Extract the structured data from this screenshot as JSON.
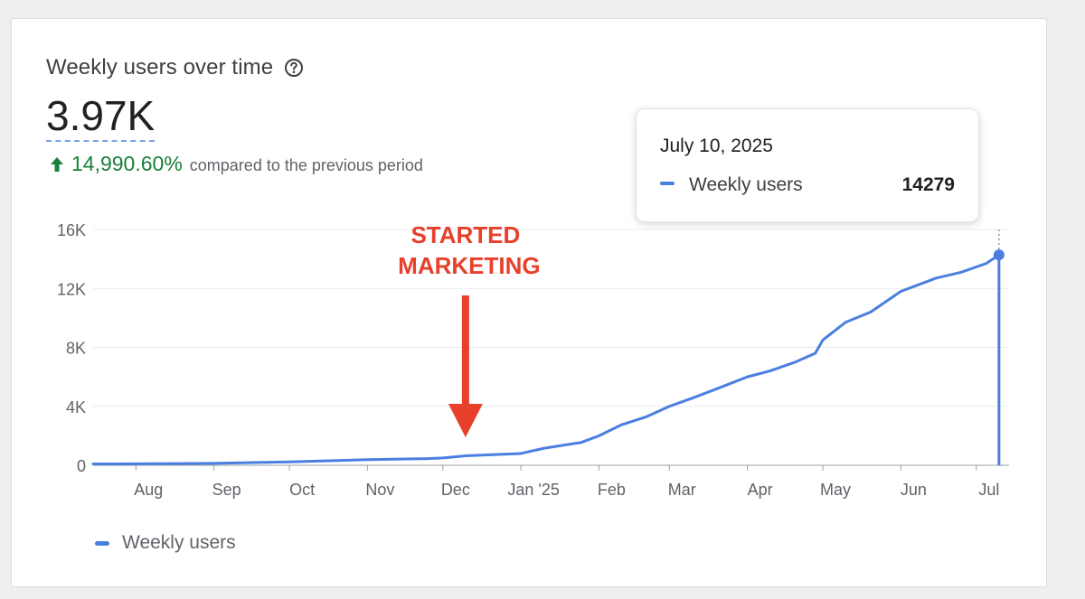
{
  "header": {
    "title": "Weekly users over time",
    "help_icon": "help-circle-icon",
    "metric": "3.97K",
    "change_icon": "arrow-up-icon",
    "change_percent": "14,990.60%",
    "change_note": "compared to the previous period"
  },
  "tooltip": {
    "date": "July 10, 2025",
    "series_label": "Weekly users",
    "value": "14279"
  },
  "annotation": {
    "line1": "STARTED",
    "line2": "MARKETING",
    "date": "2024-12-10"
  },
  "colors": {
    "series": "#4a7fe0",
    "annotation": "#e8402a",
    "positive": "#188038"
  },
  "chart_data": {
    "type": "line",
    "x_type": "date",
    "xlim": [
      "2024-07-15",
      "2025-07-14"
    ],
    "ylim": [
      0,
      16000
    ],
    "yticks": [
      {
        "value": 0,
        "label": "0"
      },
      {
        "value": 4000,
        "label": "4K"
      },
      {
        "value": 8000,
        "label": "8K"
      },
      {
        "value": 12000,
        "label": "12K"
      },
      {
        "value": 16000,
        "label": "16K"
      }
    ],
    "xticks": [
      {
        "date": "2024-08-01",
        "label": "Aug"
      },
      {
        "date": "2024-09-01",
        "label": "Sep"
      },
      {
        "date": "2024-10-01",
        "label": "Oct"
      },
      {
        "date": "2024-11-01",
        "label": "Nov"
      },
      {
        "date": "2024-12-01",
        "label": "Dec"
      },
      {
        "date": "2025-01-01",
        "label": "Jan '25"
      },
      {
        "date": "2025-02-01",
        "label": "Feb"
      },
      {
        "date": "2025-03-01",
        "label": "Mar"
      },
      {
        "date": "2025-04-01",
        "label": "Apr"
      },
      {
        "date": "2025-05-01",
        "label": "May"
      },
      {
        "date": "2025-06-01",
        "label": "Jun"
      },
      {
        "date": "2025-07-01",
        "label": "Jul"
      }
    ],
    "grid": true,
    "legend": "bottom-left",
    "series": [
      {
        "name": "Weekly users",
        "points": [
          [
            "2024-07-15",
            90
          ],
          [
            "2024-08-01",
            100
          ],
          [
            "2024-09-01",
            130
          ],
          [
            "2024-10-01",
            230
          ],
          [
            "2024-11-01",
            380
          ],
          [
            "2024-11-25",
            450
          ],
          [
            "2024-12-01",
            500
          ],
          [
            "2024-12-10",
            640
          ],
          [
            "2025-01-01",
            800
          ],
          [
            "2025-01-10",
            1150
          ],
          [
            "2025-01-25",
            1550
          ],
          [
            "2025-02-01",
            2000
          ],
          [
            "2025-02-10",
            2750
          ],
          [
            "2025-02-20",
            3300
          ],
          [
            "2025-03-01",
            4000
          ],
          [
            "2025-03-10",
            4550
          ],
          [
            "2025-03-20",
            5200
          ],
          [
            "2025-04-01",
            6000
          ],
          [
            "2025-04-10",
            6400
          ],
          [
            "2025-04-20",
            7000
          ],
          [
            "2025-04-28",
            7600
          ],
          [
            "2025-05-01",
            8500
          ],
          [
            "2025-05-10",
            9700
          ],
          [
            "2025-05-20",
            10400
          ],
          [
            "2025-06-01",
            11800
          ],
          [
            "2025-06-15",
            12700
          ],
          [
            "2025-06-25",
            13100
          ],
          [
            "2025-07-05",
            13700
          ],
          [
            "2025-07-10",
            14279
          ]
        ]
      }
    ],
    "highlight_date": "2025-07-10"
  },
  "legend": {
    "label": "Weekly users"
  }
}
